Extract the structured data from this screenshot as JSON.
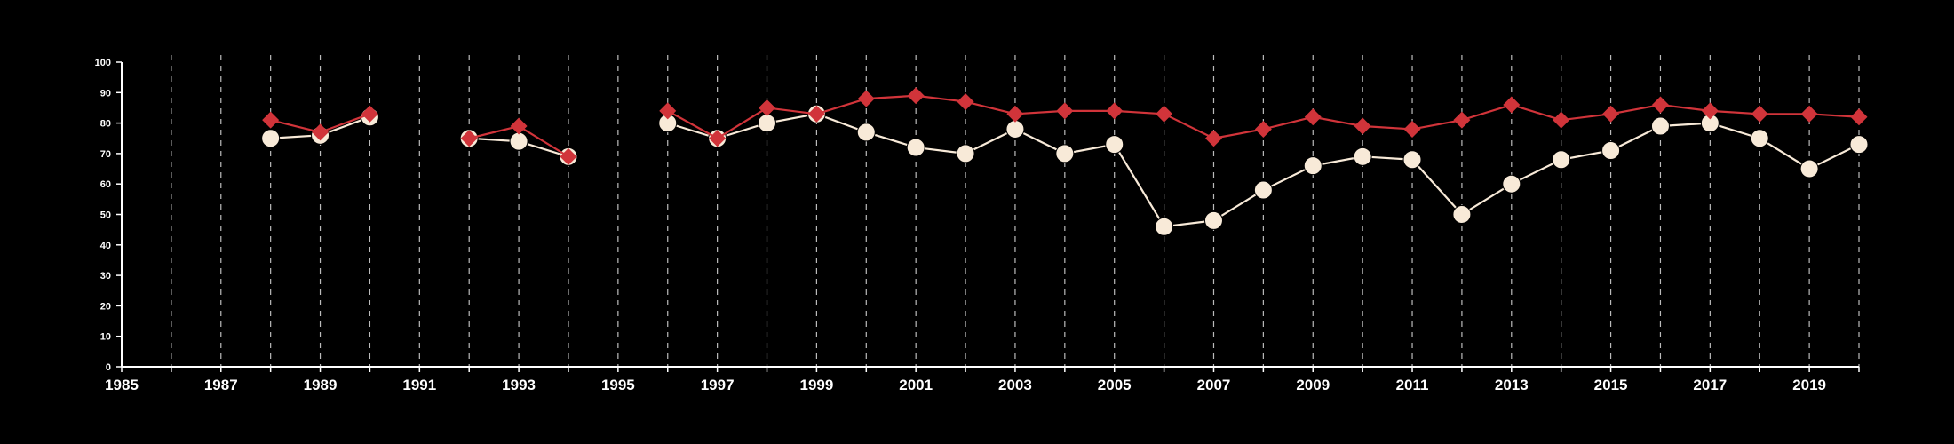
{
  "chart_data": {
    "type": "line",
    "title": "",
    "xlabel": "",
    "ylabel": "",
    "xlim": [
      1985,
      2020
    ],
    "ylim": [
      0,
      100
    ],
    "grid": "vertical dashed at each year",
    "legend": "none",
    "colors": {
      "background": "#000000",
      "axis": "#ffffff",
      "grid": "#bbbbbb",
      "series_red": "#d1343a",
      "series_cream": "#f8ead8"
    },
    "xticks": [
      "1985",
      "1987",
      "1989",
      "1991",
      "1993",
      "1995",
      "1997",
      "1999",
      "2001",
      "2003",
      "2005",
      "2007",
      "2009",
      "2011",
      "2013",
      "2015",
      "2017",
      "2019"
    ],
    "yticks": [
      "0",
      "10",
      "20",
      "30",
      "40",
      "50",
      "60",
      "70",
      "80",
      "90",
      "100"
    ],
    "x": [
      1988,
      1989,
      1990,
      1992,
      1993,
      1994,
      1996,
      1997,
      1998,
      1999,
      2000,
      2001,
      2002,
      2003,
      2004,
      2005,
      2006,
      2007,
      2008,
      2009,
      2010,
      2011,
      2012,
      2013,
      2014,
      2015,
      2016,
      2017,
      2018,
      2019,
      2020
    ],
    "series": [
      {
        "marker": "diamond",
        "color": "#d1343a",
        "values": [
          81,
          77,
          83,
          75,
          79,
          69,
          84,
          75,
          85,
          83,
          88,
          89,
          87,
          83,
          84,
          84,
          83,
          75,
          78,
          82,
          79,
          78,
          81,
          86,
          81,
          83,
          86,
          84,
          83,
          83,
          82
        ]
      },
      {
        "marker": "circle",
        "color": "#f8ead8",
        "values": [
          75,
          76,
          82,
          75,
          74,
          69,
          80,
          75,
          80,
          83,
          77,
          72,
          70,
          78,
          70,
          73,
          46,
          48,
          58,
          66,
          69,
          68,
          50,
          60,
          68,
          71,
          79,
          80,
          75,
          65,
          73
        ]
      }
    ]
  }
}
